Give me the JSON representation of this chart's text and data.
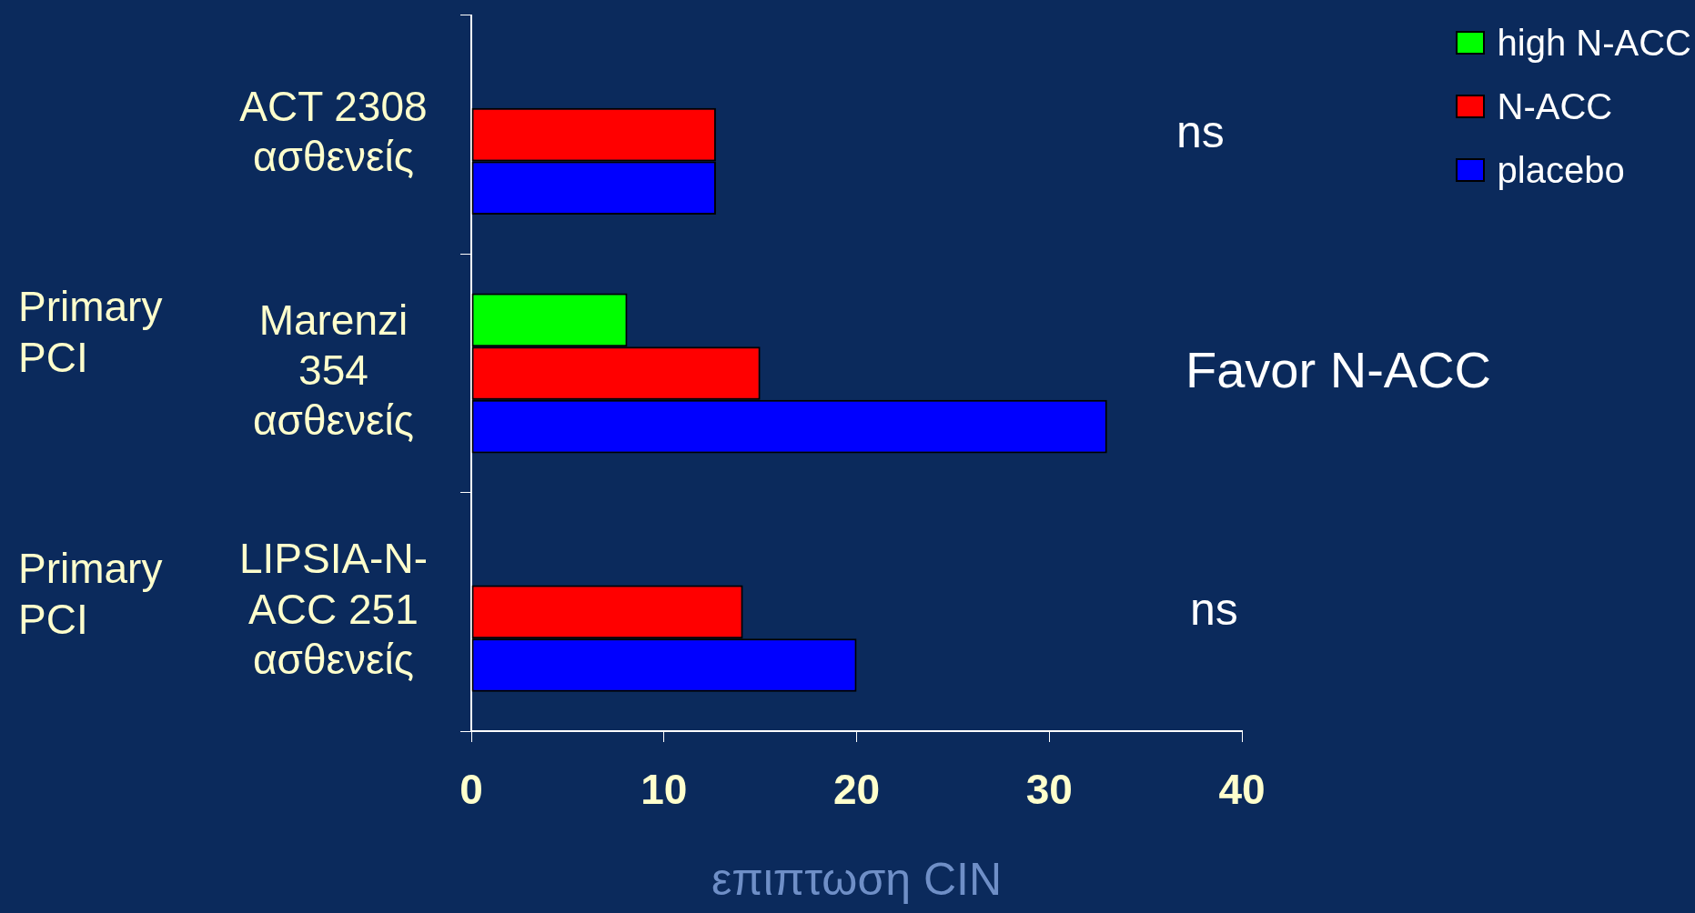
{
  "chart_data": {
    "type": "bar",
    "orientation": "horizontal",
    "xlabel": "επιπτωση CIN",
    "categories": [
      "ACT 2308 ασθενείς",
      "Marenzi 354 ασθενείς",
      "LIPSIA-N-ACC 251 ασθενείς"
    ],
    "series": [
      {
        "name": "high N-ACC",
        "color": "#00ff00",
        "values": [
          null,
          8.1,
          null
        ]
      },
      {
        "name": "N-ACC",
        "color": "#ff0000",
        "values": [
          12.7,
          15.0,
          14.1
        ]
      },
      {
        "name": "placebo",
        "color": "#0000ff",
        "values": [
          12.7,
          33.0,
          20.0
        ]
      }
    ],
    "xlim": [
      0,
      40
    ],
    "xticks": [
      0,
      10,
      20,
      30,
      40
    ],
    "legend": "top right",
    "annotations": [
      "Primary PCI",
      "Primary PCI",
      "ns",
      "Favor N-ACC",
      "ns"
    ]
  }
}
